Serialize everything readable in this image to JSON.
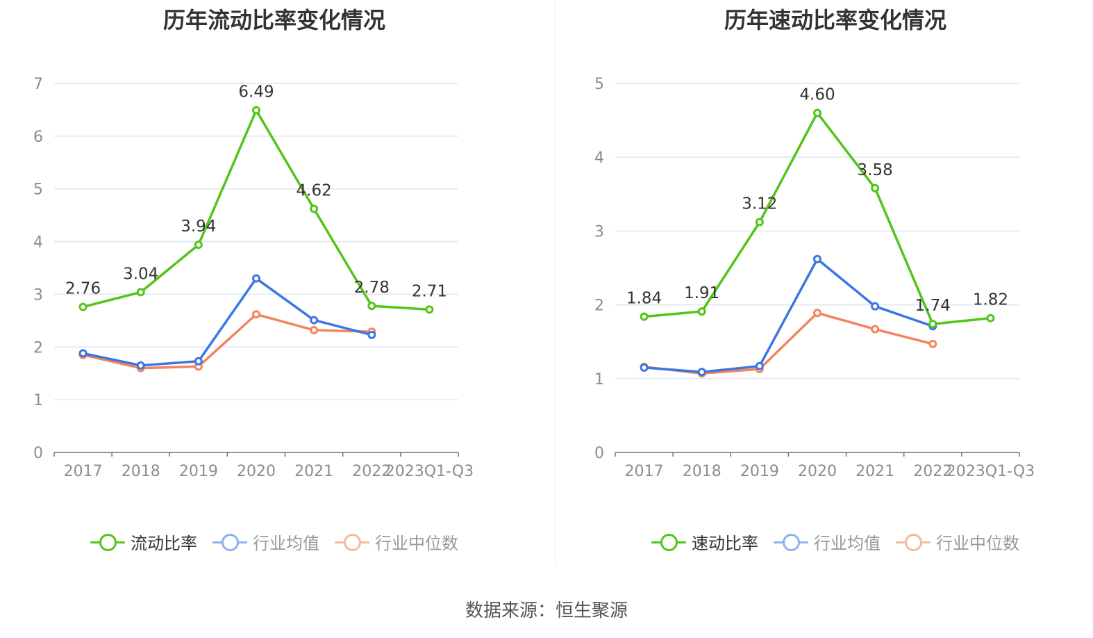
{
  "colors": {
    "main": "#52c41a",
    "avg": "#3b76e3",
    "median": "#f4845c",
    "avg_legend": "#8fb0ef",
    "median_legend": "#f7b79e"
  },
  "footer": {
    "source": "数据来源：恒生聚源"
  },
  "chart_data": [
    {
      "type": "line",
      "title": "历年流动比率变化情况",
      "categories": [
        "2017",
        "2018",
        "2019",
        "2020",
        "2021",
        "2022",
        "2023Q1-Q3"
      ],
      "ylim": [
        0,
        7
      ],
      "yticks": [
        0,
        1,
        2,
        3,
        4,
        5,
        6,
        7
      ],
      "grid": true,
      "legend_position": "bottom",
      "series": [
        {
          "name": "流动比率",
          "key": "main",
          "values": [
            2.76,
            3.04,
            3.94,
            6.49,
            4.62,
            2.78,
            2.71
          ],
          "labels": [
            "2.76",
            "3.04",
            "3.94",
            "6.49",
            "4.62",
            "2.78",
            "2.71"
          ]
        },
        {
          "name": "行业均值",
          "key": "avg",
          "values": [
            1.88,
            1.65,
            1.73,
            3.3,
            2.51,
            2.23,
            null
          ]
        },
        {
          "name": "行业中位数",
          "key": "median",
          "values": [
            1.85,
            1.6,
            1.63,
            2.62,
            2.32,
            2.29,
            null
          ]
        }
      ]
    },
    {
      "type": "line",
      "title": "历年速动比率变化情况",
      "categories": [
        "2017",
        "2018",
        "2019",
        "2020",
        "2021",
        "2022",
        "2023Q1-Q3"
      ],
      "ylim": [
        0,
        5
      ],
      "yticks": [
        0,
        1,
        2,
        3,
        4,
        5
      ],
      "grid": true,
      "legend_position": "bottom",
      "series": [
        {
          "name": "速动比率",
          "key": "main",
          "values": [
            1.84,
            1.91,
            3.12,
            4.6,
            3.58,
            1.74,
            1.82
          ],
          "labels": [
            "1.84",
            "1.91",
            "3.12",
            "4.60",
            "3.58",
            "1.74",
            "1.82"
          ]
        },
        {
          "name": "行业均值",
          "key": "avg",
          "values": [
            1.15,
            1.09,
            1.17,
            2.62,
            1.98,
            1.71,
            null
          ]
        },
        {
          "name": "行业中位数",
          "key": "median",
          "values": [
            1.16,
            1.07,
            1.13,
            1.89,
            1.67,
            1.47,
            null
          ]
        }
      ]
    }
  ]
}
